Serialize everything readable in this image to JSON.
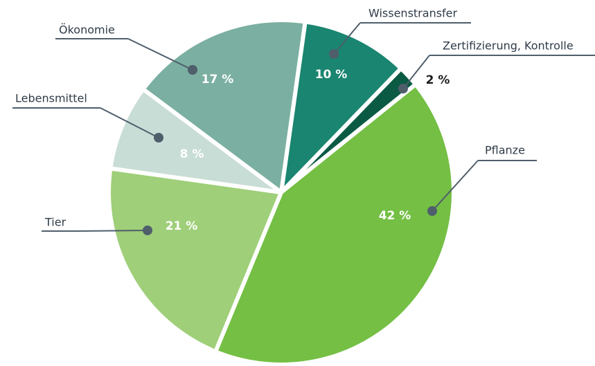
{
  "chart_data": {
    "type": "pie",
    "categories": [
      "Wissenstransfer",
      "Zertifizierung, Kontrolle",
      "Pflanze",
      "Tier",
      "Lebensmittel",
      "Ökonomie"
    ],
    "values": [
      10,
      2,
      42,
      21,
      8,
      17
    ],
    "value_labels": [
      "10 %",
      "2 %",
      "42 %",
      "21 %",
      "8 %",
      "17 %"
    ],
    "colors": [
      "#1a8570",
      "#0b5a44",
      "#74bf44",
      "#9fcf79",
      "#c8ddd6",
      "#7bafa1"
    ]
  }
}
